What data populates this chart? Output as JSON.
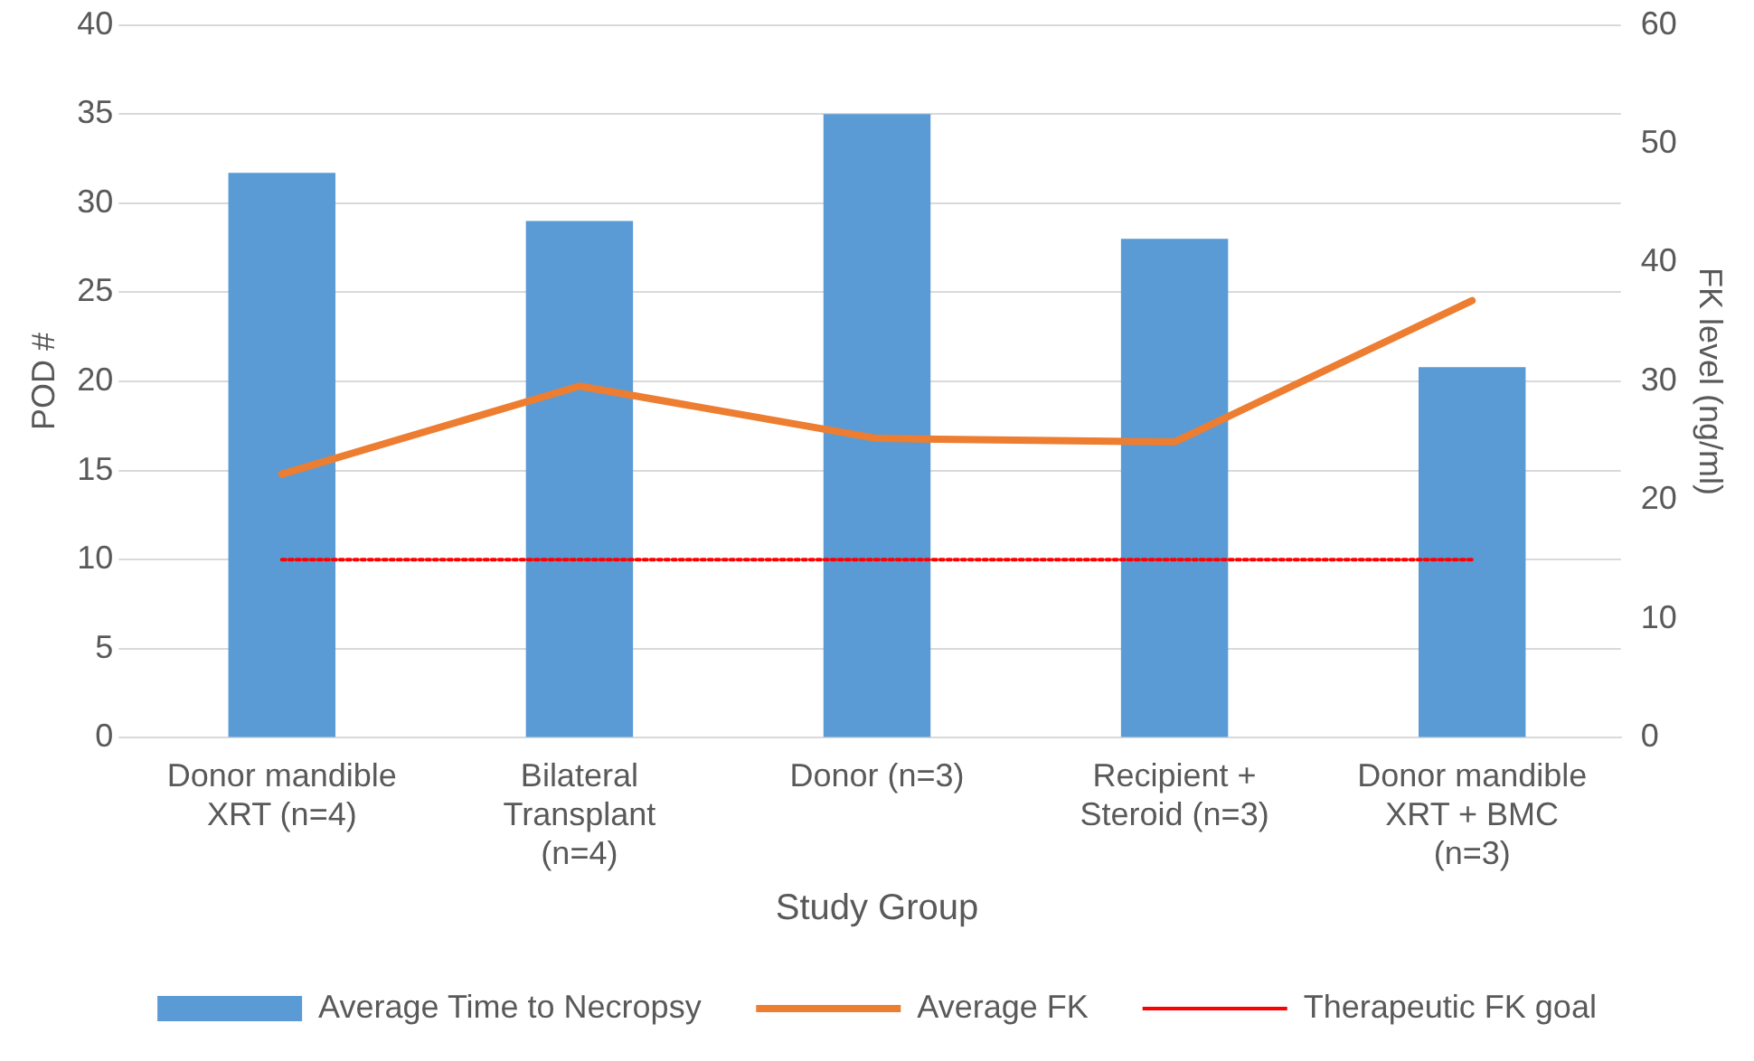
{
  "chart_data": {
    "type": "bar",
    "categories": [
      "Donor mandible  XRT (n=4)",
      "Bilateral Transplant (n=4)",
      "Donor (n=3)",
      "Recipient + Steroid (n=3)",
      "Donor mandible XRT + BMC (n=3)"
    ],
    "series": [
      {
        "name": "Average Time to Necropsy",
        "color": "#5b9bd5",
        "values": [
          31.7,
          29,
          35,
          28,
          20.8
        ]
      },
      {
        "name": "Average FK",
        "type": "line",
        "axis": "y2",
        "color": "#ed7d31",
        "line_style": "solid",
        "values": [
          22.2,
          29.6,
          25.2,
          24.9,
          36.8
        ]
      },
      {
        "name": "Therapeutic FK goal",
        "type": "line",
        "axis": "y2",
        "color": "#ff0000",
        "line_style": "dotted",
        "values": [
          15,
          15,
          15,
          15,
          15
        ]
      }
    ],
    "xlabel": "Study Group",
    "ylabel": "POD #",
    "y2label": "FK level (ng/ml)",
    "ylim": [
      0,
      40
    ],
    "yticks": [
      0,
      5,
      10,
      15,
      20,
      25,
      30,
      35,
      40
    ],
    "y2lim": [
      0,
      60
    ],
    "y2ticks": [
      0,
      10,
      20,
      30,
      40,
      50,
      60
    ],
    "grid": "y",
    "legend": "bottom",
    "marker": "none"
  }
}
